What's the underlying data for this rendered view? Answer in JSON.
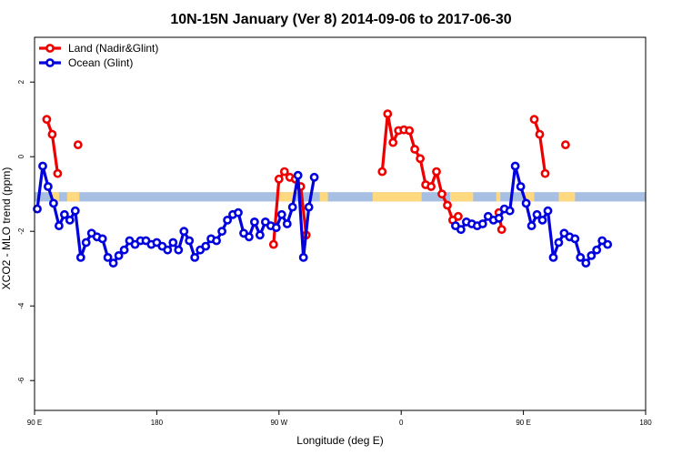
{
  "chart_data": {
    "type": "line",
    "title": "10N-15N January (Ver 8)   2014-09-06 to 2017-06-30",
    "xlabel": "Longitude (deg E)",
    "ylabel": "XCO2 - MLO trend (ppm)",
    "xlim": [
      90,
      540
    ],
    "ylim": [
      -6.8,
      3.2
    ],
    "x_ticks": [
      {
        "value": 90,
        "label": "90 E"
      },
      {
        "value": 180,
        "label": "180"
      },
      {
        "value": 270,
        "label": "90 W"
      },
      {
        "value": 360,
        "label": "0"
      },
      {
        "value": 450,
        "label": "90 E"
      },
      {
        "value": 540,
        "label": "180"
      }
    ],
    "y_ticks": [
      {
        "value": 2,
        "label": "2"
      },
      {
        "value": 0,
        "label": "0"
      },
      {
        "value": -2,
        "label": "-2"
      },
      {
        "value": -4,
        "label": "-4"
      },
      {
        "value": -6,
        "label": "-6"
      }
    ],
    "legend_position": "top-left",
    "band": {
      "ymin": -1.2,
      "ymax": -0.95,
      "color": "#a7bfe3"
    },
    "land_fraction_color": "#ffd980",
    "land_fraction_regions": [
      [
        102,
        108
      ],
      [
        114,
        123
      ],
      [
        270,
        281
      ],
      [
        300,
        306
      ],
      [
        339,
        375
      ],
      [
        396,
        413
      ],
      [
        430,
        433
      ],
      [
        451,
        458
      ],
      [
        476,
        488
      ]
    ],
    "series": [
      {
        "name": "Land (Nadir&Glint)",
        "color": "#ee0000",
        "segments": [
          [
            [
              99,
              1.0
            ],
            [
              103,
              0.6
            ],
            [
              107,
              -0.45
            ]
          ],
          [
            [
              122,
              0.32
            ]
          ],
          [
            [
              266,
              -2.35
            ],
            [
              270,
              -0.6
            ],
            [
              274,
              -0.4
            ],
            [
              278,
              -0.55
            ],
            [
              282,
              -0.6
            ],
            [
              286,
              -0.8
            ],
            [
              290,
              -2.1
            ]
          ],
          [
            [
              346,
              -0.4
            ],
            [
              350,
              1.15
            ],
            [
              354,
              0.38
            ],
            [
              358,
              0.7
            ],
            [
              362,
              0.72
            ],
            [
              366,
              0.7
            ],
            [
              370,
              0.2
            ],
            [
              374,
              -0.05
            ],
            [
              378,
              -0.75
            ],
            [
              382,
              -0.8
            ],
            [
              386,
              -0.4
            ],
            [
              390,
              -1.0
            ],
            [
              394,
              -1.3
            ],
            [
              398,
              -1.7
            ],
            [
              402,
              -1.6
            ]
          ],
          [
            [
              432,
              -1.5
            ],
            [
              434,
              -1.95
            ]
          ],
          [
            [
              458,
              1.0
            ],
            [
              462,
              0.6
            ],
            [
              466,
              -0.45
            ]
          ],
          [
            [
              481,
              0.32
            ]
          ]
        ]
      },
      {
        "name": "Ocean (Glint)",
        "color": "#0000dd",
        "segments": [
          [
            [
              92,
              -1.4
            ],
            [
              96,
              -0.25
            ],
            [
              100,
              -0.8
            ],
            [
              104,
              -1.25
            ],
            [
              108,
              -1.85
            ],
            [
              112,
              -1.55
            ],
            [
              116,
              -1.7
            ],
            [
              120,
              -1.45
            ],
            [
              124,
              -2.7
            ],
            [
              128,
              -2.3
            ],
            [
              132,
              -2.05
            ],
            [
              136,
              -2.15
            ],
            [
              140,
              -2.2
            ],
            [
              144,
              -2.7
            ],
            [
              148,
              -2.85
            ],
            [
              152,
              -2.65
            ],
            [
              156,
              -2.5
            ],
            [
              160,
              -2.25
            ],
            [
              164,
              -2.35
            ],
            [
              168,
              -2.25
            ],
            [
              172,
              -2.25
            ],
            [
              176,
              -2.35
            ],
            [
              180,
              -2.3
            ],
            [
              184,
              -2.4
            ],
            [
              188,
              -2.5
            ],
            [
              192,
              -2.3
            ],
            [
              196,
              -2.5
            ],
            [
              200,
              -2.0
            ],
            [
              204,
              -2.25
            ],
            [
              208,
              -2.7
            ],
            [
              212,
              -2.5
            ],
            [
              216,
              -2.4
            ],
            [
              220,
              -2.2
            ],
            [
              224,
              -2.25
            ],
            [
              228,
              -2.0
            ],
            [
              232,
              -1.7
            ],
            [
              236,
              -1.55
            ],
            [
              240,
              -1.5
            ],
            [
              244,
              -2.05
            ],
            [
              248,
              -2.15
            ],
            [
              252,
              -1.75
            ],
            [
              256,
              -2.1
            ],
            [
              260,
              -1.75
            ],
            [
              264,
              -1.85
            ],
            [
              268,
              -1.9
            ],
            [
              272,
              -1.55
            ],
            [
              276,
              -1.8
            ],
            [
              280,
              -1.35
            ],
            [
              284,
              -0.5
            ],
            [
              288,
              -2.7
            ],
            [
              292,
              -1.35
            ],
            [
              296,
              -0.55
            ]
          ],
          [
            [
              400,
              -1.85
            ],
            [
              404,
              -1.95
            ],
            [
              408,
              -1.75
            ],
            [
              412,
              -1.8
            ],
            [
              416,
              -1.85
            ],
            [
              420,
              -1.8
            ],
            [
              424,
              -1.6
            ],
            [
              428,
              -1.7
            ],
            [
              432,
              -1.65
            ],
            [
              436,
              -1.4
            ],
            [
              440,
              -1.45
            ],
            [
              444,
              -0.25
            ],
            [
              448,
              -0.8
            ],
            [
              452,
              -1.25
            ],
            [
              456,
              -1.85
            ],
            [
              460,
              -1.55
            ],
            [
              464,
              -1.7
            ],
            [
              468,
              -1.45
            ],
            [
              472,
              -2.7
            ],
            [
              476,
              -2.3
            ],
            [
              480,
              -2.05
            ],
            [
              484,
              -2.15
            ],
            [
              488,
              -2.2
            ],
            [
              492,
              -2.7
            ],
            [
              496,
              -2.85
            ],
            [
              500,
              -2.65
            ],
            [
              504,
              -2.5
            ],
            [
              508,
              -2.25
            ],
            [
              512,
              -2.35
            ]
          ]
        ]
      }
    ]
  }
}
